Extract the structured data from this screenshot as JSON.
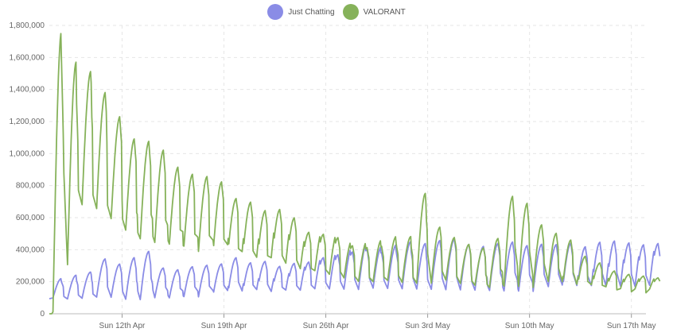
{
  "chart_data": {
    "type": "line",
    "title": "",
    "xlabel": "",
    "ylabel": "",
    "x_start": "2020-04-07",
    "x_end": "2020-05-18",
    "ylim": [
      0,
      1800000
    ],
    "y_ticks": [
      0,
      200000,
      400000,
      600000,
      800000,
      1000000,
      1200000,
      1400000,
      1600000,
      1800000
    ],
    "y_tick_labels": [
      "0",
      "200,000",
      "400,000",
      "600,000",
      "800,000",
      "1,000,000",
      "1,200,000",
      "1,400,000",
      "1,600,000",
      "1,800,000"
    ],
    "x_ticks": [
      "2020-04-12",
      "2020-04-19",
      "2020-04-26",
      "2020-05-03",
      "2020-05-10",
      "2020-05-17"
    ],
    "x_tick_labels": [
      "Sun 12th Apr",
      "Sun 19th Apr",
      "Sun 26th Apr",
      "Sun 3rd May",
      "Sun 10th May",
      "Sun 17th May"
    ],
    "grid": true,
    "legend": "top-center",
    "series": [
      {
        "name": "Just Chatting",
        "color": "#8a8ce6",
        "daily": [
          [
            100000,
            210000
          ],
          [
            95000,
            230000
          ],
          [
            100000,
            250000
          ],
          [
            110000,
            330000
          ],
          [
            110000,
            300000
          ],
          [
            100000,
            340000
          ],
          [
            100000,
            380000
          ],
          [
            110000,
            280000
          ],
          [
            110000,
            270000
          ],
          [
            120000,
            290000
          ],
          [
            120000,
            300000
          ],
          [
            130000,
            310000
          ],
          [
            130000,
            350000
          ],
          [
            130000,
            320000
          ],
          [
            140000,
            330000
          ],
          [
            130000,
            300000
          ],
          [
            140000,
            320000
          ],
          [
            140000,
            330000
          ],
          [
            150000,
            360000
          ],
          [
            150000,
            380000
          ],
          [
            150000,
            400000
          ],
          [
            150000,
            420000
          ],
          [
            160000,
            400000
          ],
          [
            160000,
            410000
          ],
          [
            160000,
            430000
          ],
          [
            160000,
            420000
          ],
          [
            160000,
            440000
          ],
          [
            160000,
            450000
          ],
          [
            160000,
            420000
          ],
          [
            160000,
            410000
          ],
          [
            160000,
            430000
          ],
          [
            160000,
            440000
          ],
          [
            160000,
            420000
          ],
          [
            160000,
            430000
          ],
          [
            160000,
            430000
          ],
          [
            160000,
            440000
          ],
          [
            160000,
            420000
          ],
          [
            160000,
            450000
          ],
          [
            160000,
            460000
          ],
          [
            160000,
            450000
          ],
          [
            160000,
            440000
          ],
          [
            170000,
            450000
          ]
        ]
      },
      {
        "name": "VALORANT",
        "color": "#86b25a",
        "daily": [
          [
            20000,
            1680000
          ],
          [
            320000,
            1500000
          ],
          [
            700000,
            1450000
          ],
          [
            680000,
            1330000
          ],
          [
            620000,
            1190000
          ],
          [
            550000,
            1060000
          ],
          [
            500000,
            1050000
          ],
          [
            480000,
            1000000
          ],
          [
            470000,
            900000
          ],
          [
            460000,
            860000
          ],
          [
            430000,
            850000
          ],
          [
            420000,
            820000
          ],
          [
            400000,
            720000
          ],
          [
            360000,
            700000
          ],
          [
            330000,
            650000
          ],
          [
            330000,
            660000
          ],
          [
            300000,
            610000
          ],
          [
            270000,
            520000
          ],
          [
            260000,
            510000
          ],
          [
            240000,
            490000
          ],
          [
            220000,
            440000
          ],
          [
            200000,
            430000
          ],
          [
            200000,
            440000
          ],
          [
            210000,
            460000
          ],
          [
            200000,
            460000
          ],
          [
            200000,
            720000
          ],
          [
            200000,
            520000
          ],
          [
            220000,
            460000
          ],
          [
            200000,
            420000
          ],
          [
            190000,
            400000
          ],
          [
            180000,
            460000
          ],
          [
            200000,
            720000
          ],
          [
            200000,
            680000
          ],
          [
            190000,
            550000
          ],
          [
            190000,
            500000
          ],
          [
            180000,
            460000
          ],
          [
            170000,
            360000
          ],
          [
            170000,
            320000
          ],
          [
            160000,
            270000
          ],
          [
            150000,
            250000
          ],
          [
            150000,
            240000
          ],
          [
            150000,
            230000
          ]
        ]
      }
    ]
  }
}
